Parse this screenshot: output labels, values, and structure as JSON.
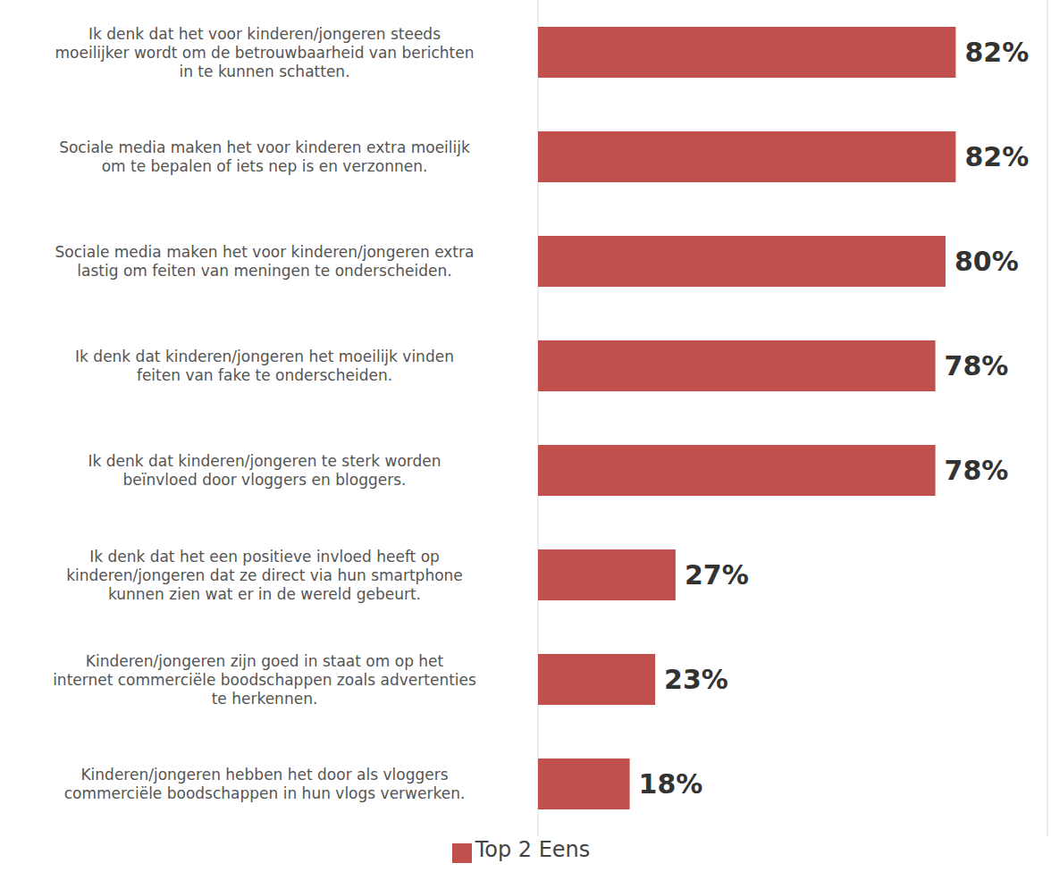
{
  "chart_data": {
    "type": "bar",
    "orientation": "horizontal",
    "categories": [
      "Ik denk dat het voor kinderen/jongeren steeds moeilijker wordt om de betrouwbaarheid van berichten in te kunnen schatten.",
      "Sociale media maken het voor kinderen extra moeilijk om te bepalen of iets nep is en verzonnen.",
      "Sociale media maken het voor kinderen/jongeren extra lastig om feiten van meningen te onderscheiden.",
      "Ik denk dat kinderen/jongeren het moeilijk vinden feiten van fake te onderscheiden.",
      "Ik denk dat kinderen/jongeren te sterk worden beïnvloed door vloggers en bloggers.",
      "Ik denk dat het een positieve invloed heeft op kinderen/jongeren dat ze direct via hun smartphone kunnen zien wat er in de wereld gebeurt.",
      "Kinderen/jongeren zijn goed in staat om op het internet commerciële boodschappen zoals advertenties te herkennen.",
      "Kinderen/jongeren hebben het door als vloggers commerciële boodschappen in hun vlogs verwerken."
    ],
    "series": [
      {
        "name": "Top 2 Eens",
        "color": "#c0504d",
        "values": [
          82,
          82,
          80,
          78,
          78,
          27,
          23,
          18
        ],
        "value_labels": [
          "82%",
          "82%",
          "80%",
          "78%",
          "78%",
          "27%",
          "23%",
          "18%"
        ]
      }
    ],
    "xlim": [
      0,
      100
    ],
    "xticks": [
      0,
      20,
      40,
      60,
      80,
      100
    ],
    "grid": true,
    "data_labels": true,
    "tick_labels": "y",
    "legend": "bottom"
  }
}
